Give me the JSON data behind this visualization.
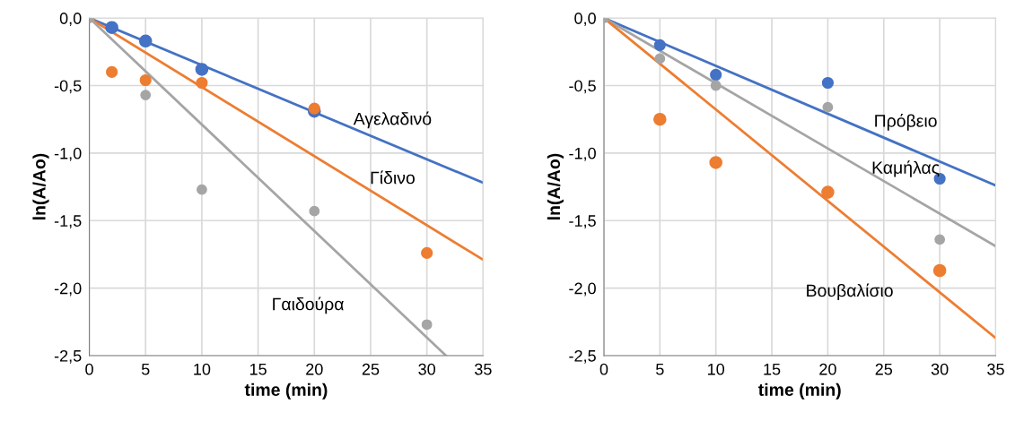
{
  "chart_data": [
    {
      "type": "scatter",
      "xlabel": "time (min)",
      "ylabel": "ln(A/Ao)",
      "xlim": [
        0,
        35
      ],
      "ylim": [
        -2.5,
        0
      ],
      "xticks": [
        0,
        5,
        10,
        15,
        20,
        25,
        30,
        35
      ],
      "yticks": [
        {
          "value": -2.5,
          "label": "-2,5"
        },
        {
          "value": -2.0,
          "label": "-2,0"
        },
        {
          "value": -1.5,
          "label": "-1,5"
        },
        {
          "value": -1.0,
          "label": "-1,0"
        },
        {
          "value": -0.5,
          "label": "-0,5"
        },
        {
          "value": 0,
          "label": "0,0"
        }
      ],
      "grid": true,
      "series": [
        {
          "type": "line",
          "name": "Αγελαδινό",
          "marker": "none",
          "color": "#4472c4",
          "x": [
            0,
            35
          ],
          "values": [
            0,
            -1.22
          ]
        },
        {
          "type": "line",
          "name": "Γίδινο",
          "marker": "none",
          "color": "#ed7d31",
          "x": [
            0,
            35
          ],
          "values": [
            0,
            -1.79
          ]
        },
        {
          "type": "line",
          "name": "Γαιδούρα",
          "marker": "none",
          "color": "#a5a5a5",
          "x": [
            0,
            31.7
          ],
          "values": [
            0,
            -2.5
          ]
        },
        {
          "marker": "circle",
          "color": "#4472c4",
          "x": [
            2,
            5,
            10,
            20
          ],
          "values": [
            -0.07,
            -0.17,
            -0.38,
            -0.69
          ]
        },
        {
          "marker": "circle",
          "color": "#ed7d31",
          "x": [
            2,
            5,
            10,
            20,
            30
          ],
          "values": [
            -0.4,
            -0.46,
            -0.48,
            -0.67,
            -1.74
          ]
        },
        {
          "marker": "circle",
          "color": "#a5a5a5",
          "x": [
            0,
            5,
            10,
            20,
            30
          ],
          "values": [
            0,
            -0.57,
            -1.27,
            -1.43,
            -2.27
          ]
        }
      ]
    },
    {
      "type": "scatter",
      "xlabel": "time (min)",
      "ylabel": "ln(A/Ao)",
      "xlim": [
        0,
        35
      ],
      "ylim": [
        -2.5,
        0
      ],
      "xticks": [
        0,
        5,
        10,
        15,
        20,
        25,
        30,
        35
      ],
      "yticks": [
        {
          "value": -2.5,
          "label": "-2,5"
        },
        {
          "value": -2.0,
          "label": "-2,0"
        },
        {
          "value": -1.5,
          "label": "-1,5"
        },
        {
          "value": -1.0,
          "label": "-1,0"
        },
        {
          "value": -0.5,
          "label": "-0,5"
        },
        {
          "value": 0,
          "label": "0,0"
        }
      ],
      "grid": true,
      "series": [
        {
          "type": "line",
          "name": "Πρόβειο",
          "marker": "none",
          "color": "#4472c4",
          "x": [
            0,
            35
          ],
          "values": [
            0,
            -1.24
          ]
        },
        {
          "type": "line",
          "name": "Καμήλας",
          "marker": "none",
          "color": "#a5a5a5",
          "x": [
            0,
            35
          ],
          "values": [
            0,
            -1.69
          ]
        },
        {
          "type": "line",
          "name": "Βουβαλίσιο",
          "marker": "none",
          "color": "#ed7d31",
          "x": [
            0,
            35
          ],
          "values": [
            0,
            -2.37
          ]
        },
        {
          "marker": "circle",
          "color": "#ed7d31",
          "x": [
            5,
            10,
            20,
            30
          ],
          "values": [
            -0.75,
            -1.07,
            -1.29,
            -1.87
          ]
        },
        {
          "marker": "circle",
          "color": "#4472c4",
          "x": [
            5,
            10,
            20,
            30
          ],
          "values": [
            -0.2,
            -0.42,
            -0.48,
            -1.19
          ]
        },
        {
          "marker": "circle",
          "color": "#a5a5a5",
          "x": [
            0,
            5,
            10,
            20,
            30
          ],
          "values": [
            0,
            -0.3,
            -0.5,
            -0.66,
            -1.64
          ]
        }
      ]
    }
  ]
}
